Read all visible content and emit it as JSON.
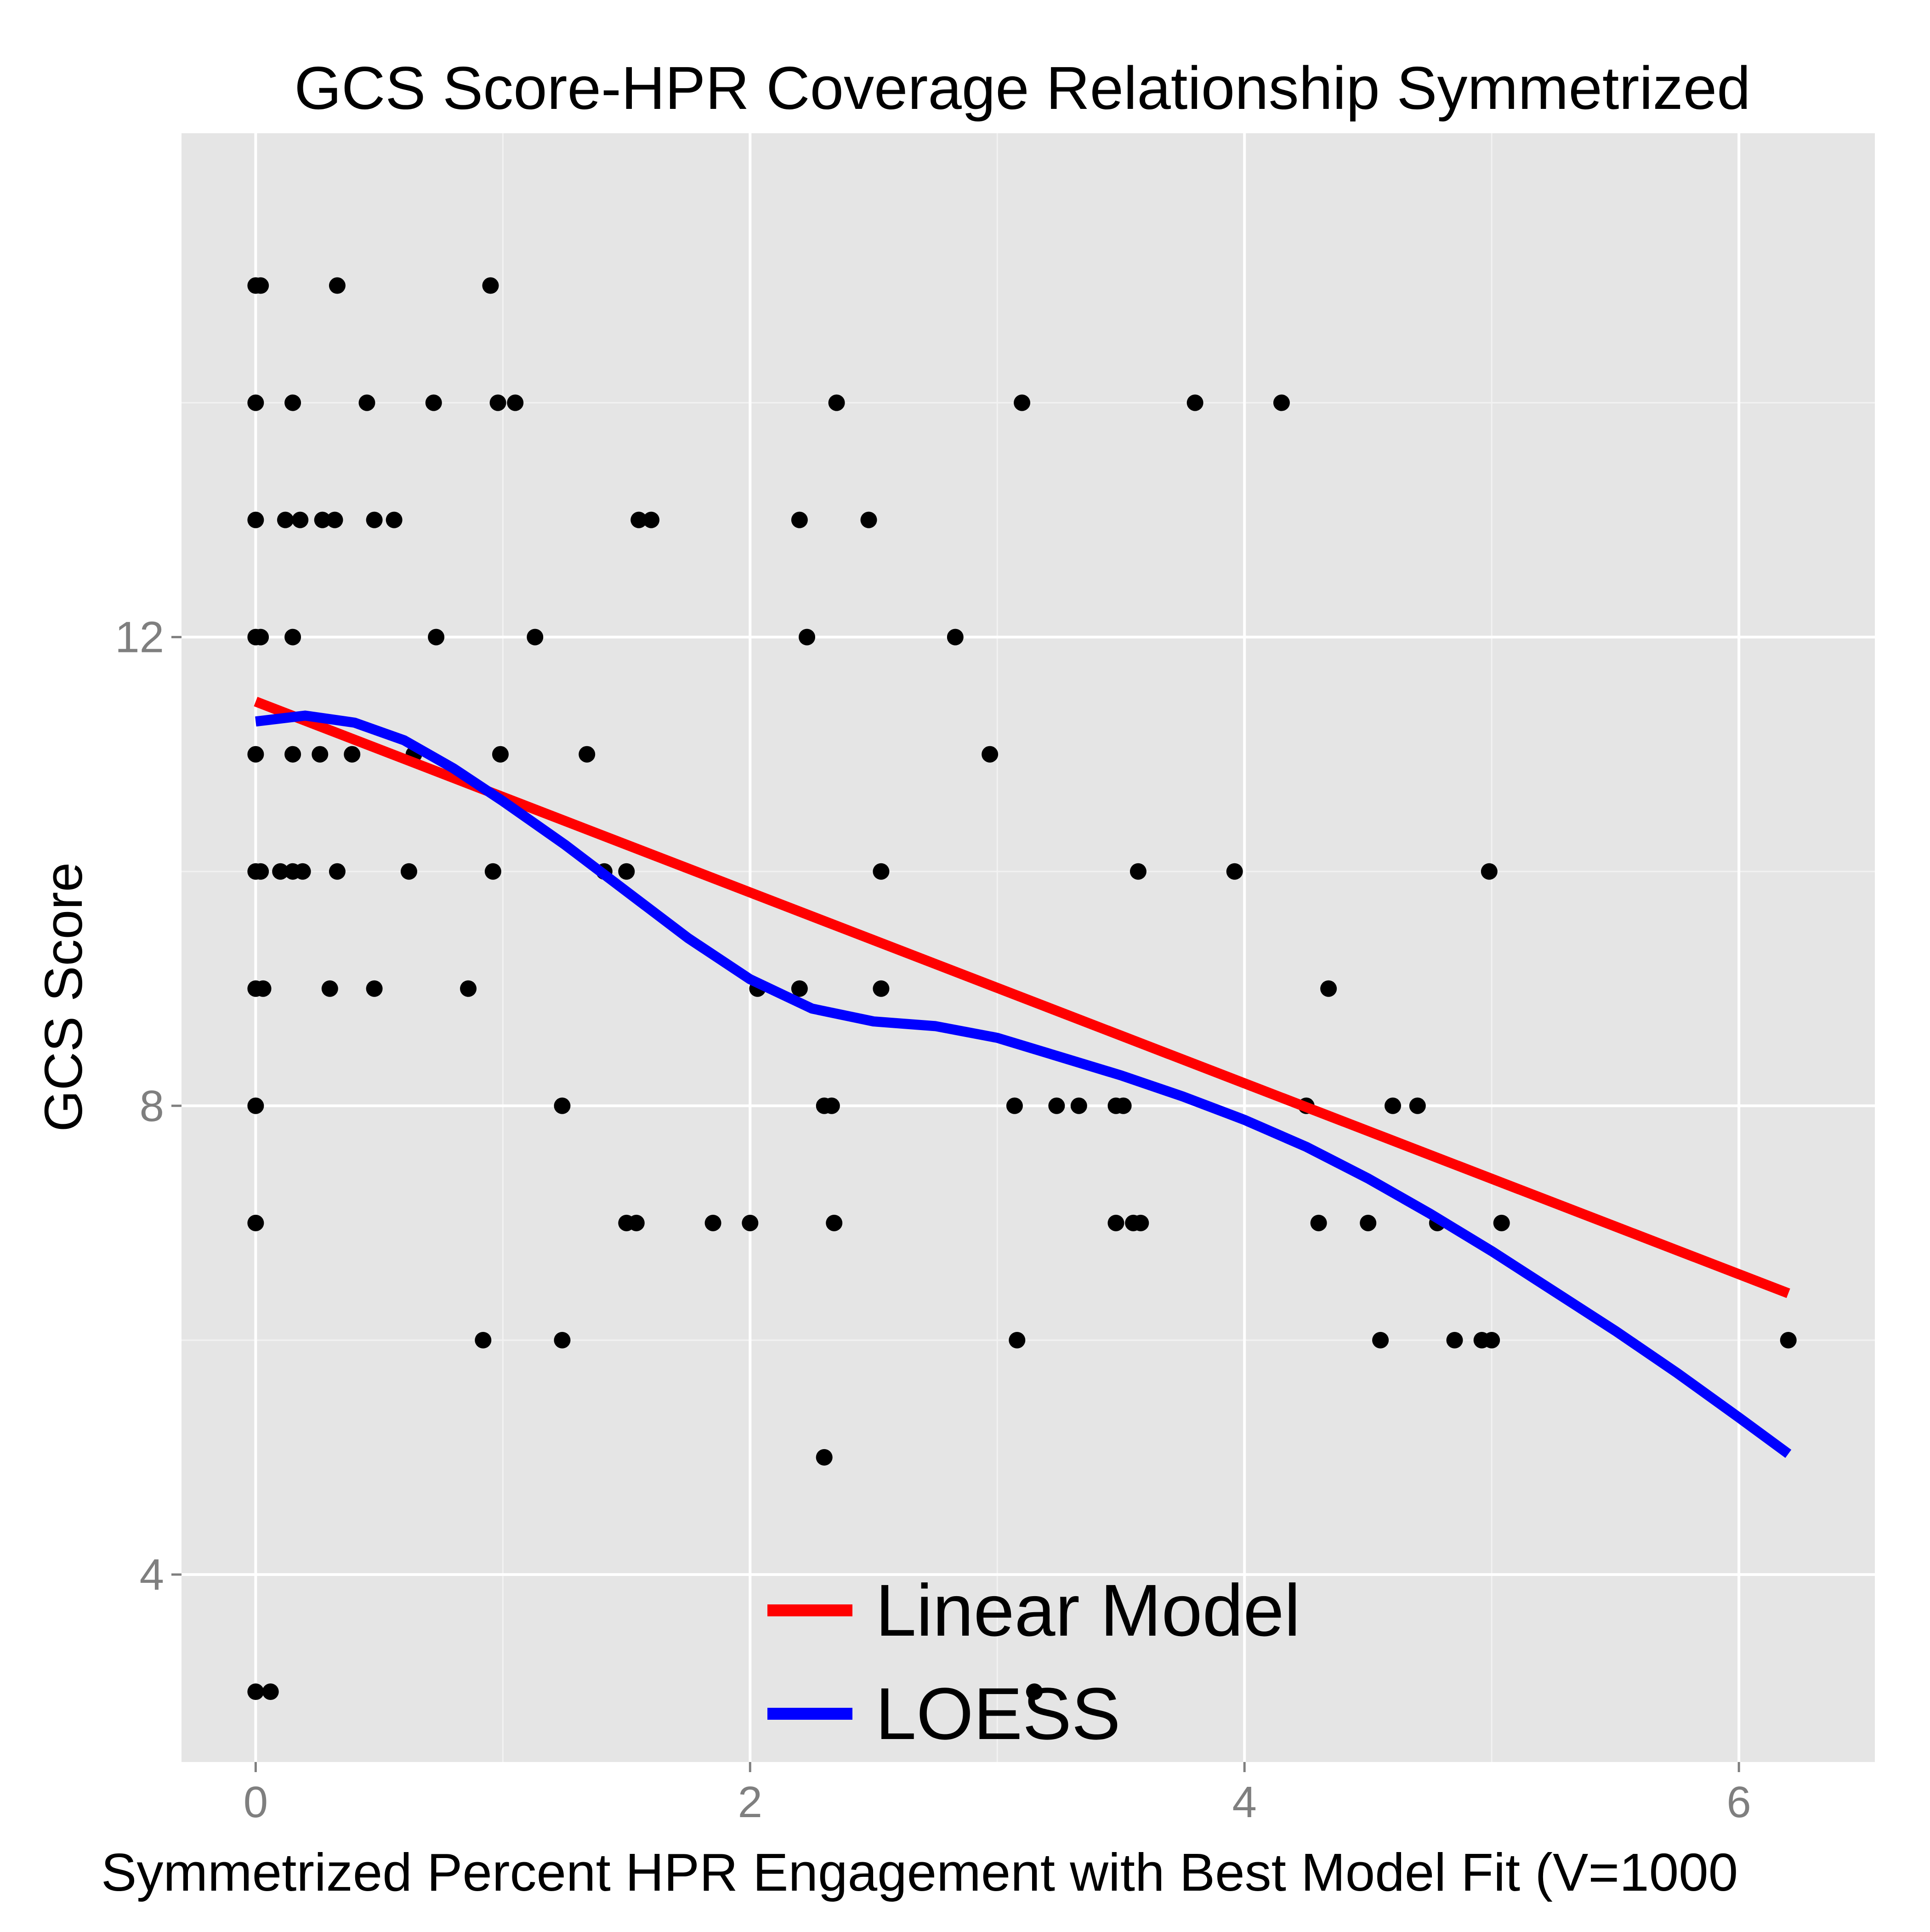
{
  "chart_data": {
    "type": "scatter",
    "title": "GCS Score-HPR Coverage Relationship Symmetrized",
    "xlabel": "Symmetrized Percent HPR Engagement with Best Model Fit (V=1000",
    "ylabel": "GCS Score",
    "xlim": [
      -0.3,
      6.55
    ],
    "ylim": [
      2.4,
      16.3
    ],
    "x_ticks": [
      0,
      2,
      4,
      6
    ],
    "x_tick_labels": [
      "0",
      "2",
      "4",
      "6"
    ],
    "y_ticks": [
      4,
      8,
      12
    ],
    "y_tick_labels": [
      "4",
      "8",
      "12"
    ],
    "y_minor_ticks": [
      6,
      10,
      14
    ],
    "x_minor_ticks": [
      1,
      3,
      5
    ],
    "grid": true,
    "background_color": "#e5e5e5",
    "grid_color": "#ffffff",
    "legend_position": "bottom-center",
    "points": [
      [
        0.0,
        15
      ],
      [
        0.02,
        15
      ],
      [
        0.33,
        15
      ],
      [
        0.95,
        15
      ],
      [
        0.0,
        14
      ],
      [
        0.15,
        14
      ],
      [
        0.45,
        14
      ],
      [
        0.72,
        14
      ],
      [
        0.98,
        14
      ],
      [
        1.05,
        14
      ],
      [
        2.35,
        14
      ],
      [
        3.1,
        14
      ],
      [
        3.8,
        14
      ],
      [
        4.15,
        14
      ],
      [
        0.0,
        13
      ],
      [
        0.12,
        13
      ],
      [
        0.18,
        13
      ],
      [
        0.27,
        13
      ],
      [
        0.32,
        13
      ],
      [
        0.48,
        13
      ],
      [
        0.56,
        13
      ],
      [
        1.55,
        13
      ],
      [
        1.6,
        13
      ],
      [
        2.2,
        13
      ],
      [
        2.48,
        13
      ],
      [
        0.0,
        12
      ],
      [
        0.02,
        12
      ],
      [
        0.15,
        12
      ],
      [
        0.73,
        12
      ],
      [
        1.13,
        12
      ],
      [
        2.23,
        12
      ],
      [
        2.83,
        12
      ],
      [
        0.0,
        11
      ],
      [
        0.15,
        11
      ],
      [
        0.26,
        11
      ],
      [
        0.39,
        11
      ],
      [
        0.64,
        11
      ],
      [
        0.99,
        11
      ],
      [
        1.34,
        11
      ],
      [
        2.97,
        11
      ],
      [
        0.0,
        10
      ],
      [
        0.02,
        10
      ],
      [
        0.1,
        10
      ],
      [
        0.15,
        10
      ],
      [
        0.19,
        10
      ],
      [
        0.33,
        10
      ],
      [
        0.62,
        10
      ],
      [
        0.96,
        10
      ],
      [
        1.41,
        10
      ],
      [
        1.5,
        10
      ],
      [
        2.53,
        10
      ],
      [
        3.57,
        10
      ],
      [
        3.96,
        10
      ],
      [
        4.99,
        10
      ],
      [
        0.0,
        9
      ],
      [
        0.03,
        9
      ],
      [
        0.3,
        9
      ],
      [
        0.48,
        9
      ],
      [
        0.86,
        9
      ],
      [
        2.03,
        9
      ],
      [
        2.2,
        9
      ],
      [
        2.53,
        9
      ],
      [
        4.34,
        9
      ],
      [
        0.0,
        8
      ],
      [
        1.24,
        8
      ],
      [
        2.3,
        8
      ],
      [
        2.33,
        8
      ],
      [
        3.07,
        8
      ],
      [
        3.24,
        8
      ],
      [
        3.33,
        8
      ],
      [
        3.48,
        8
      ],
      [
        3.51,
        8
      ],
      [
        4.25,
        8
      ],
      [
        4.6,
        8
      ],
      [
        4.7,
        8
      ],
      [
        0.0,
        7
      ],
      [
        1.5,
        7
      ],
      [
        1.54,
        7
      ],
      [
        1.85,
        7
      ],
      [
        2.0,
        7
      ],
      [
        2.34,
        7
      ],
      [
        3.48,
        7
      ],
      [
        3.55,
        7
      ],
      [
        3.58,
        7
      ],
      [
        4.3,
        7
      ],
      [
        4.5,
        7
      ],
      [
        4.78,
        7
      ],
      [
        5.04,
        7
      ],
      [
        0.92,
        6
      ],
      [
        1.24,
        6
      ],
      [
        3.08,
        6
      ],
      [
        4.55,
        6
      ],
      [
        4.85,
        6
      ],
      [
        4.96,
        6
      ],
      [
        5.0,
        6
      ],
      [
        6.2,
        6
      ],
      [
        2.3,
        5
      ],
      [
        0.0,
        3
      ],
      [
        0.06,
        3
      ],
      [
        3.15,
        3
      ]
    ],
    "series": [
      {
        "name": "Linear Model",
        "color": "#ff0000",
        "x": [
          0.0,
          6.2
        ],
        "y": [
          11.45,
          6.4
        ]
      },
      {
        "name": "LOESS",
        "color": "#0000ff",
        "x": [
          0.0,
          0.2,
          0.4,
          0.6,
          0.8,
          1.0,
          1.25,
          1.5,
          1.75,
          2.0,
          2.25,
          2.5,
          2.75,
          3.0,
          3.25,
          3.5,
          3.75,
          4.0,
          4.25,
          4.5,
          4.75,
          5.0,
          5.25,
          5.5,
          5.75,
          6.0,
          6.2
        ],
        "y": [
          11.28,
          11.33,
          11.27,
          11.12,
          10.88,
          10.6,
          10.23,
          9.83,
          9.43,
          9.08,
          8.83,
          8.72,
          8.68,
          8.58,
          8.42,
          8.26,
          8.08,
          7.88,
          7.65,
          7.38,
          7.08,
          6.76,
          6.42,
          6.08,
          5.72,
          5.34,
          5.03
        ]
      }
    ]
  }
}
